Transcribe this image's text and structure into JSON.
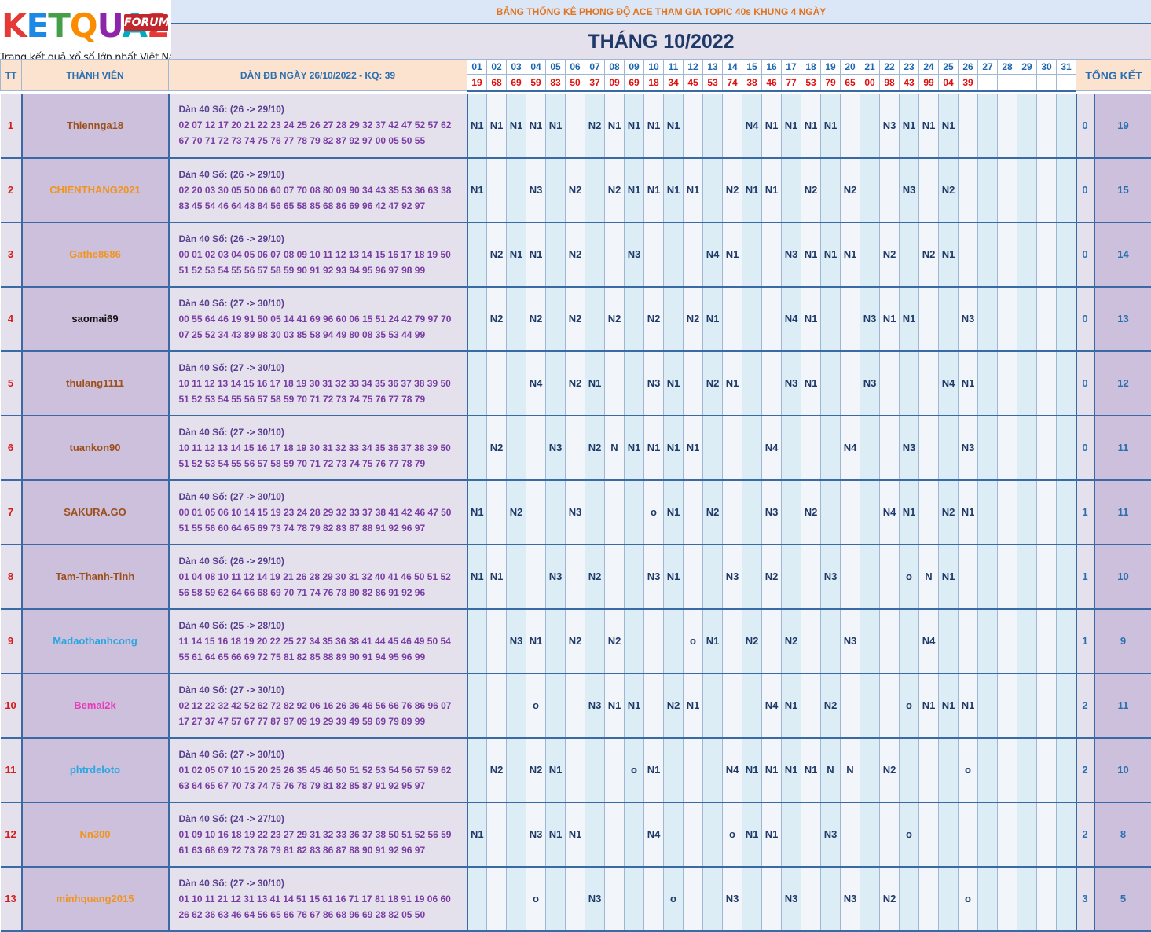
{
  "logo": {
    "brand": "KETQUA2",
    "badge": "FORUM",
    "slogan": "Trang kết quả xổ số lớn nhất Việt Nam",
    "colors": [
      "#e53935",
      "#1e88e5",
      "#43a047",
      "#fb8c00",
      "#8e24aa",
      "#00acc1",
      "#e53935"
    ]
  },
  "header": {
    "title": "BẢNG THỐNG KÊ PHONG ĐỘ ACE THAM GIA TOPIC 40s KHUNG 4 NGÀY",
    "month": "THÁNG 10/2022"
  },
  "columns": {
    "tt": "TT",
    "member": "THÀNH VIÊN",
    "dan": "DÀN ĐB NGÀY 26/10/2022 - KQ: 39",
    "summary": "TỔNG KẾT"
  },
  "days": [
    "01",
    "02",
    "03",
    "04",
    "05",
    "06",
    "07",
    "08",
    "09",
    "10",
    "11",
    "12",
    "13",
    "14",
    "15",
    "16",
    "17",
    "18",
    "19",
    "20",
    "21",
    "22",
    "23",
    "24",
    "25",
    "26",
    "27",
    "28",
    "29",
    "30",
    "31"
  ],
  "results": [
    "19",
    "68",
    "69",
    "59",
    "83",
    "50",
    "37",
    "09",
    "69",
    "18",
    "34",
    "45",
    "53",
    "74",
    "38",
    "46",
    "77",
    "53",
    "79",
    "65",
    "00",
    "98",
    "43",
    "99",
    "04",
    "39",
    "",
    "",
    "",
    "",
    ""
  ],
  "rows": [
    {
      "tt": "1",
      "name": "Thiennga18",
      "color": "#9c4f1a",
      "title": "Dàn 40 Số: (26 -> 29/10)",
      "line1": "02 07 12 17 20 21 22 23 24 25 26 27 28 29 32 37 42 47 52 57 62",
      "line2": "67 70 71 72 73 74 75 76 77 78 79 82 87 92 97 00 05 50 55",
      "marks": {
        "01": "N1",
        "02": "N1",
        "03": "N1",
        "04": "N1",
        "05": "N1",
        "07": "N2",
        "08": "N1",
        "09": "N1",
        "10": "N1",
        "11": "N1",
        "15": "N4",
        "16": "N1",
        "17": "N1",
        "18": "N1",
        "19": "N1",
        "22": "N3",
        "23": "N1",
        "24": "N1",
        "25": "N1"
      },
      "count": "0",
      "total": "19"
    },
    {
      "tt": "2",
      "name": "CHIENTHANG2021",
      "color": "#f0941f",
      "title": "Dàn 40 Số: (26 -> 29/10)",
      "line1": "02 20 03 30 05 50 06 60 07 70 08 80 09 90 34 43 35 53 36 63 38",
      "line2": "83 45 54 46 64 48 84 56 65 58 85 68 86 69 96 42 47 92 97",
      "marks": {
        "01": "N1",
        "04": "N3",
        "06": "N2",
        "08": "N2",
        "09": "N1",
        "10": "N1",
        "11": "N1",
        "12": "N1",
        "14": "N2",
        "15": "N1",
        "16": "N1",
        "18": "N2",
        "20": "N2",
        "23": "N3",
        "25": "N2"
      },
      "count": "0",
      "total": "15"
    },
    {
      "tt": "3",
      "name": "Gathe8686",
      "color": "#f0941f",
      "title": "Dàn 40 Số: (26 -> 29/10)",
      "line1": "00 01 02 03 04 05 06 07 08 09 10 11 12 13 14 15 16 17 18 19 50",
      "line2": "51 52 53 54 55 56 57 58 59 90 91 92 93 94 95 96 97 98 99",
      "marks": {
        "02": "N2",
        "03": "N1",
        "04": "N1",
        "06": "N2",
        "09": "N3",
        "13": "N4",
        "14": "N1",
        "17": "N3",
        "18": "N1",
        "19": "N1",
        "20": "N1",
        "22": "N2",
        "24": "N2",
        "25": "N1"
      },
      "count": "0",
      "total": "14"
    },
    {
      "tt": "4",
      "name": "saomai69",
      "color": "#111111",
      "title": "Dàn 40 Số: (27 -> 30/10)",
      "line1": "00 55 64 46 19 91 50 05 14 41 69 96 60 06 15 51 24 42 79 97 70",
      "line2": "07 25 52 34 43 89 98 30 03 85 58 94 49 80 08 35 53 44 99",
      "marks": {
        "02": "N2",
        "04": "N2",
        "06": "N2",
        "08": "N2",
        "10": "N2",
        "12": "N2",
        "13": "N1",
        "17": "N4",
        "18": "N1",
        "21": "N3",
        "22": "N1",
        "23": "N1",
        "26": "N3"
      },
      "count": "0",
      "total": "13"
    },
    {
      "tt": "5",
      "name": "thulang1111",
      "color": "#9c4f1a",
      "title": "Dàn 40 Số: (27 -> 30/10)",
      "line1": "10 11 12 13 14 15 16 17 18 19 30 31 32 33 34 35 36 37 38 39 50",
      "line2": "51 52 53 54 55 56 57 58 59 70 71 72 73 74 75 76 77 78 79",
      "marks": {
        "04": "N4",
        "06": "N2",
        "07": "N1",
        "10": "N3",
        "11": "N1",
        "13": "N2",
        "14": "N1",
        "17": "N3",
        "18": "N1",
        "21": "N3",
        "25": "N4",
        "26": "N1"
      },
      "count": "0",
      "total": "12"
    },
    {
      "tt": "6",
      "name": "tuankon90",
      "color": "#9c4f1a",
      "title": "Dàn 40 Số: (27 -> 30/10)",
      "line1": "10 11 12 13 14 15 16 17 18 19 30 31 32 33 34 35 36 37 38 39 50",
      "line2": "51 52 53 54 55 56 57 58 59 70 71 72 73 74 75 76 77 78 79",
      "marks": {
        "02": "N2",
        "05": "N3",
        "07": "N2",
        "08": "N",
        "09": "N1",
        "10": "N1",
        "11": "N1",
        "12": "N1",
        "16": "N4",
        "20": "N4",
        "23": "N3",
        "26": "N3"
      },
      "count": "0",
      "total": "11"
    },
    {
      "tt": "7",
      "name": "SAKURA.GO",
      "color": "#9c4f1a",
      "title": "Dàn 40 Số: (27 -> 30/10)",
      "line1": "00 01 05 06 10 14 15 19 23 24 28 29 32 33 37 38 41 42 46 47 50",
      "line2": "51 55 56 60 64 65 69 73 74 78 79 82 83 87 88 91 92 96 97",
      "marks": {
        "01": "N1",
        "03": "N2",
        "06": "N3",
        "10": "o",
        "11": "N1",
        "13": "N2",
        "16": "N3",
        "18": "N2",
        "22": "N4",
        "23": "N1",
        "25": "N2",
        "26": "N1"
      },
      "count": "1",
      "total": "11"
    },
    {
      "tt": "8",
      "name": "Tam-Thanh-Tinh",
      "color": "#9c4f1a",
      "title": "Dàn 40 Số: (26 -> 29/10)",
      "line1": "01 04 08 10 11 12 14 19 21 26 28 29 30 31 32 40 41 46 50 51 52",
      "line2": "56 58 59 62 64 66 68 69 70 71 74 76 78 80 82 86 91 92 96",
      "marks": {
        "01": "N1",
        "02": "N1",
        "05": "N3",
        "07": "N2",
        "10": "N3",
        "11": "N1",
        "14": "N3",
        "16": "N2",
        "19": "N3",
        "23": "o",
        "24": "N",
        "25": "N1"
      },
      "count": "1",
      "total": "10"
    },
    {
      "tt": "9",
      "name": "Madaothanhcong",
      "color": "#29a6e0",
      "title": "Dàn 40 Số: (25 -> 28/10)",
      "line1": "11 14 15 16 18 19 20 22 25 27 34 35 36 38 41 44 45 46 49 50 54",
      "line2": "55 61 64 65 66 69 72 75 81 82 85 88 89 90 91 94 95 96 99",
      "marks": {
        "03": "N3",
        "04": "N1",
        "06": "N2",
        "08": "N2",
        "12": "o",
        "13": "N1",
        "15": "N2",
        "17": "N2",
        "20": "N3",
        "24": "N4"
      },
      "count": "1",
      "total": "9"
    },
    {
      "tt": "10",
      "name": "Bemai2k",
      "color": "#e83cba",
      "title": "Dàn 40 Số: (27 -> 30/10)",
      "line1": "02 12 22 32 42 52 62 72 82 92 06 16 26 36 46 56 66 76 86 96 07",
      "line2": "17 27 37 47 57 67 77 87 97 09 19 29 39 49 59 69 79 89 99",
      "marks": {
        "04": "o",
        "07": "N3",
        "08": "N1",
        "09": "N1",
        "11": "N2",
        "12": "N1",
        "16": "N4",
        "17": "N1",
        "19": "N2",
        "23": "o",
        "24": "N1",
        "25": "N1",
        "26": "N1"
      },
      "count": "2",
      "total": "11"
    },
    {
      "tt": "11",
      "name": "phtrdeloto",
      "color": "#29a6e0",
      "title": "Dàn 40 Số: (27 -> 30/10)",
      "line1": "01 02 05 07 10 15 20 25 26 35 45 46 50 51 52 53 54 56 57 59 62",
      "line2": "63 64 65 67 70 73 74 75 76 78 79 81 82 85 87 91 92 95 97",
      "marks": {
        "02": "N2",
        "04": "N2",
        "05": "N1",
        "09": "o",
        "10": "N1",
        "14": "N4",
        "15": "N1",
        "16": "N1",
        "17": "N1",
        "18": "N1",
        "19": "N",
        "20": "N",
        "22": "N2",
        "26": "o"
      },
      "count": "2",
      "total": "10"
    },
    {
      "tt": "12",
      "name": "Nn300",
      "color": "#f0941f",
      "title": "Dàn 40 Số: (24 -> 27/10)",
      "line1": "01 09 10 16 18 19 22 23 27 29 31 32 33 36 37 38 50 51 52 56 59",
      "line2": "61 63 68 69 72 73 78 79 81 82 83 86 87 88 90 91 92 96 97",
      "marks": {
        "01": "N1",
        "04": "N3",
        "05": "N1",
        "06": "N1",
        "10": "N4",
        "14": "o",
        "15": "N1",
        "16": "N1",
        "19": "N3",
        "23": "o"
      },
      "count": "2",
      "total": "8"
    },
    {
      "tt": "13",
      "name": "minhquang2015",
      "color": "#f0941f",
      "title": "Dàn 40 Số: (27 -> 30/10)",
      "line1": "01 10 11 21 12 31 13 41 14 51 15 61 16 71 17 81 18 91 19 06 60",
      "line2": "26 62 36 63 46 64 56 65 66 76 67 86 68 96 69 28 82 05 50",
      "marks": {
        "04": "o",
        "07": "N3",
        "11": "o",
        "14": "N3",
        "17": "N3",
        "20": "N3",
        "22": "N2",
        "26": "o"
      },
      "count": "3",
      "total": "5"
    }
  ]
}
